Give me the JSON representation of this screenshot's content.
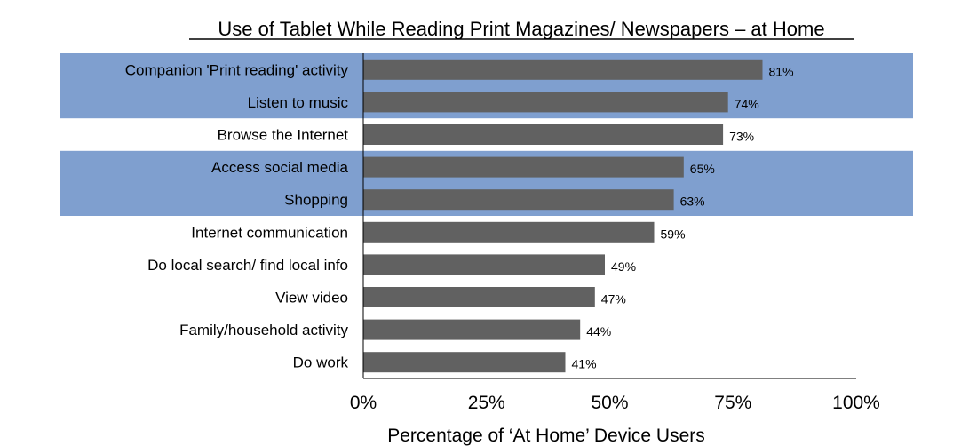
{
  "chart_data": {
    "type": "bar",
    "orientation": "horizontal",
    "title": "Use of Tablet While Reading Print Magazines/ Newspapers – at Home",
    "xlabel": "Percentage of ‘At Home’ Device Users",
    "ylabel": "",
    "xlim": [
      0,
      100
    ],
    "ticks": [
      "0%",
      "25%",
      "50%",
      "75%",
      "100%"
    ],
    "categories": [
      "Companion 'Print reading' activity",
      "Listen to music",
      "Browse the Internet",
      "Access social media",
      "Shopping",
      "Internet communication",
      "Do local search/ find local info",
      "View video",
      "Family/household activity",
      "Do work"
    ],
    "values": [
      81,
      74,
      73,
      65,
      63,
      59,
      49,
      47,
      44,
      41
    ],
    "value_labels": [
      "81%",
      "74%",
      "73%",
      "65%",
      "63%",
      "59%",
      "49%",
      "47%",
      "44%",
      "41%"
    ],
    "highlighted_categories": [
      "Companion 'Print reading' activity",
      "Listen to music",
      "Access social media",
      "Shopping"
    ],
    "grid": false,
    "colors": {
      "bar": "#616161",
      "highlight": "#7f9fcf",
      "axis": "#000000"
    }
  }
}
